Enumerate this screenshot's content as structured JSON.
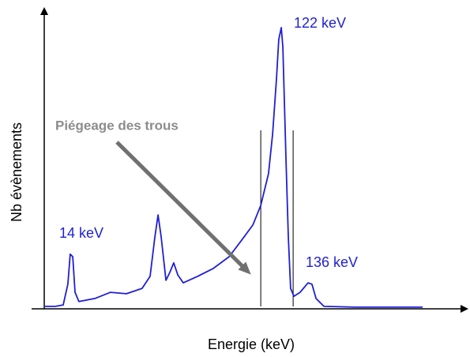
{
  "chart_data": {
    "type": "line",
    "xlabel": "Energie (keV)",
    "ylabel": "Nb évènements",
    "annotations": [
      "122 keV",
      "14 keV",
      "136 keV",
      "Piégeage des trous"
    ],
    "xlim": [
      0,
      217.6
    ],
    "ylim": [
      0,
      100
    ],
    "vlines": [
      111.7,
      128.4
    ],
    "series": [
      {
        "color": "#1f1fd6",
        "x": [
          0.4,
          5.7,
          9.8,
          12.2,
          13.4,
          14.7,
          15.9,
          17.9,
          26.1,
          34.2,
          42.4,
          50.5,
          54.6,
          57.1,
          58.7,
          60.3,
          62.8,
          64.8,
          66.8,
          68.9,
          71.7,
          79.1,
          87.2,
          95.4,
          101.5,
          107.6,
          111.7,
          115.7,
          117.8,
          119.8,
          121.0,
          122.3,
          123.1,
          124.7,
          125.9,
          127.1,
          128.8,
          132.0,
          136.1,
          138.1,
          140.2,
          144.3,
          160.6,
          195.2
        ],
        "values": [
          0.6,
          0.6,
          1.1,
          8.5,
          19.2,
          18.3,
          5.6,
          2.3,
          3.4,
          5.6,
          5.1,
          7.0,
          11.3,
          25.4,
          33.2,
          25.4,
          9.9,
          12.7,
          16.1,
          11.8,
          9.0,
          11.3,
          14.1,
          18.3,
          23.9,
          29.6,
          36.6,
          47.9,
          62.0,
          81.7,
          95.8,
          100,
          93.0,
          53.5,
          25.4,
          7.0,
          4.2,
          5.6,
          9.0,
          8.5,
          3.4,
          0.6,
          0.3,
          0.3
        ]
      }
    ]
  }
}
